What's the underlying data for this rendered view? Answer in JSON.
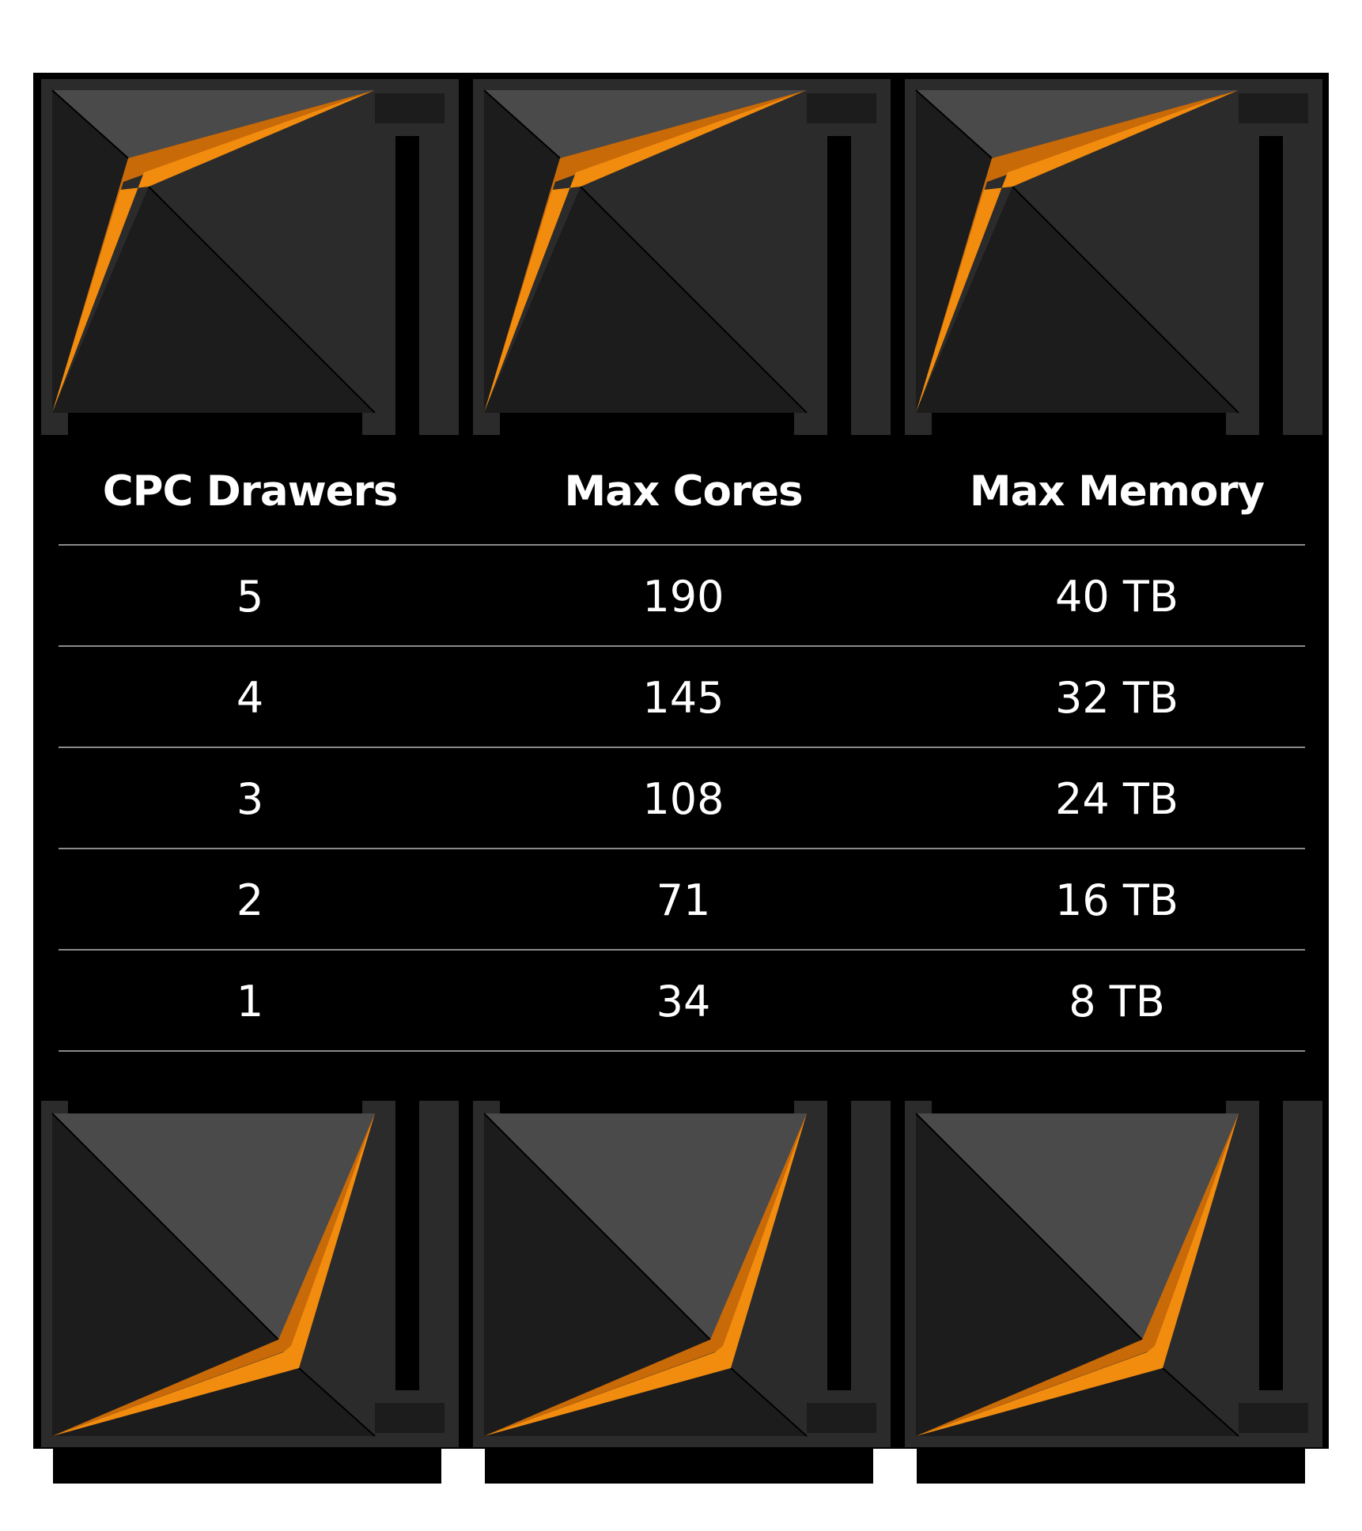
{
  "colors": {
    "background": "#ffffff",
    "panel": "#000000",
    "accent_orange": "#f28c0f",
    "accent_orange_dark": "#c96a08",
    "block_light": "#4a4a4a",
    "block_mid": "#2b2b2b",
    "block_dark": "#1c1c1c",
    "divider": "#8a8a8a"
  },
  "table": {
    "headers": [
      "CPC Drawers",
      "Max Cores",
      "Max Memory"
    ],
    "rows": [
      [
        "5",
        "190",
        "40 TB"
      ],
      [
        "4",
        "145",
        "32 TB"
      ],
      [
        "3",
        "108",
        "24 TB"
      ],
      [
        "2",
        "71",
        "16 TB"
      ],
      [
        "1",
        "34",
        "8 TB"
      ]
    ]
  }
}
